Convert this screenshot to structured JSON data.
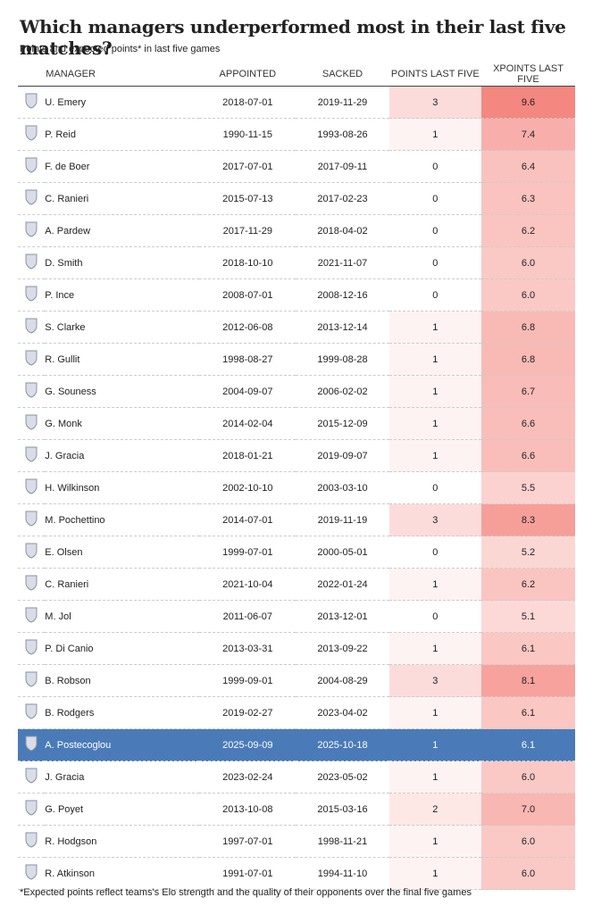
{
  "header": {
    "title": "Which managers underperformed most in their last five matches?",
    "subtitle": "Points and expected points* in last five games"
  },
  "table": {
    "columns": [
      "MANAGER",
      "APPOINTED",
      "SACKED",
      "POINTS LAST FIVE",
      "XPOINTS LAST FIVE"
    ],
    "rows": [
      [
        "U. Emery",
        "2018-07-01",
        "2019-11-29",
        "3",
        "9.6"
      ],
      [
        "P. Reid",
        "1990-11-15",
        "1993-08-26",
        "1",
        "7.4"
      ],
      [
        "F. de Boer",
        "2017-07-01",
        "2017-09-11",
        "0",
        "6.4"
      ],
      [
        "C. Ranieri",
        "2015-07-13",
        "2017-02-23",
        "0",
        "6.3"
      ],
      [
        "A. Pardew",
        "2017-11-29",
        "2018-04-02",
        "0",
        "6.2"
      ],
      [
        "D. Smith",
        "2018-10-10",
        "2021-11-07",
        "0",
        "6.0"
      ],
      [
        "P. Ince",
        "2008-07-01",
        "2008-12-16",
        "0",
        "6.0"
      ],
      [
        "S. Clarke",
        "2012-06-08",
        "2013-12-14",
        "1",
        "6.8"
      ],
      [
        "R. Gullit",
        "1998-08-27",
        "1999-08-28",
        "1",
        "6.8"
      ],
      [
        "G. Souness",
        "2004-09-07",
        "2006-02-02",
        "1",
        "6.7"
      ],
      [
        "G. Monk",
        "2014-02-04",
        "2015-12-09",
        "1",
        "6.6"
      ],
      [
        "J. Gracia",
        "2018-01-21",
        "2019-09-07",
        "1",
        "6.6"
      ],
      [
        "H. Wilkinson",
        "2002-10-10",
        "2003-03-10",
        "0",
        "5.5"
      ],
      [
        "M. Pochettino",
        "2014-07-01",
        "2019-11-19",
        "3",
        "8.3"
      ],
      [
        "E. Olsen",
        "1999-07-01",
        "2000-05-01",
        "0",
        "5.2"
      ],
      [
        "C. Ranieri",
        "2021-10-04",
        "2022-01-24",
        "1",
        "6.2"
      ],
      [
        "M. Jol",
        "2011-06-07",
        "2013-12-01",
        "0",
        "5.1"
      ],
      [
        "P. Di Canio",
        "2013-03-31",
        "2013-09-22",
        "1",
        "6.1"
      ],
      [
        "B. Robson",
        "1999-09-01",
        "2004-08-29",
        "3",
        "8.1"
      ],
      [
        "B. Rodgers",
        "2019-02-27",
        "2023-04-02",
        "1",
        "6.1"
      ],
      [
        "A. Postecoglou",
        "2025-09-09",
        "2025-10-18",
        "1",
        "6.1"
      ],
      [
        "J. Gracia",
        "2023-02-24",
        "2023-05-02",
        "1",
        "6.0"
      ],
      [
        "G. Poyet",
        "2013-10-08",
        "2015-03-16",
        "2",
        "7.0"
      ],
      [
        "R. Hodgson",
        "1997-07-01",
        "1998-11-21",
        "1",
        "6.0"
      ],
      [
        "R. Atkinson",
        "1991-07-01",
        "1994-11-10",
        "1",
        "6.0"
      ]
    ],
    "highlighted_row": 20
  },
  "footnote": "*Expected points reflect teams's Elo strength and the quality of their opponents over the final five games"
}
